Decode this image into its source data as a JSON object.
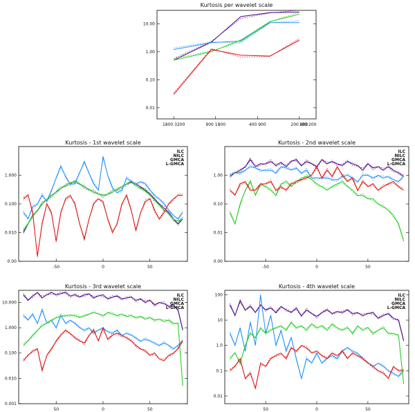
{
  "colors": {
    "ILC": "#4b0082",
    "NILC": "#1e90ff",
    "GMCA": "#22cc22",
    "L-GMCA": "#dd1111"
  },
  "chart_data": [
    {
      "type": "line",
      "title": "Kurtosis per wavelet scale",
      "yscale": "log",
      "ylim": [
        0.004,
        30
      ],
      "ytick_values": [
        0.01,
        0.1,
        1,
        10
      ],
      "ytick_labels": [
        "0.01",
        "0.10",
        "1.00",
        "10.00"
      ],
      "xlim": [
        0.6,
        4.4
      ],
      "xtick_values": [
        1,
        2,
        3,
        4
      ],
      "xtick_labels": [
        "1800 3200",
        "900 1800",
        "400 900",
        "200 400"
      ],
      "xtick_extra": "100 200",
      "x": [
        1,
        1.9,
        2.6,
        3.3,
        4.0
      ],
      "series": [
        {
          "name": "ILC",
          "values": [
            0.5,
            2.2,
            18,
            25,
            26
          ]
        },
        {
          "name": "NILC",
          "values": [
            1.2,
            2.1,
            2.4,
            11,
            11
          ]
        },
        {
          "name": "GMCA",
          "values": [
            0.5,
            1.0,
            2.6,
            12,
            22
          ]
        },
        {
          "name": "L-GMCA",
          "values": [
            0.03,
            1.2,
            0.75,
            0.7,
            2.6
          ]
        }
      ]
    },
    {
      "type": "line",
      "title": "Kurtosis - 1st wavelet scale",
      "yscale": "log",
      "ylim": [
        0.001,
        10
      ],
      "ytick_values": [
        0.001,
        0.01,
        0.1,
        1
      ],
      "ytick_labels": [
        "0.00",
        "0.010",
        "0.100",
        "1.000"
      ],
      "xlim": [
        -90,
        90
      ],
      "xtick_values": [
        -50,
        0,
        50
      ],
      "xtick_labels": [
        "-50",
        "0",
        "50"
      ],
      "legend": [
        "ILC",
        "NILC",
        "GMCA",
        "L-GMCA"
      ],
      "x": [
        -85,
        -80,
        -75,
        -70,
        -65,
        -60,
        -55,
        -50,
        -45,
        -40,
        -35,
        -30,
        -25,
        -20,
        -15,
        -10,
        -5,
        0,
        5,
        10,
        15,
        20,
        25,
        30,
        35,
        40,
        45,
        50,
        55,
        60,
        65,
        70,
        75,
        80,
        85
      ],
      "series": [
        {
          "name": "ILC",
          "values": [
            0.01,
            0.02,
            0.04,
            0.06,
            0.1,
            0.14,
            0.2,
            0.26,
            0.34,
            0.44,
            0.55,
            0.6,
            0.48,
            0.4,
            0.32,
            0.26,
            0.22,
            0.2,
            0.22,
            0.26,
            0.32,
            0.4,
            0.48,
            0.58,
            0.5,
            0.4,
            0.3,
            0.22,
            0.15,
            0.1,
            0.07,
            0.05,
            0.03,
            0.02,
            0.03
          ]
        },
        {
          "name": "NILC",
          "values": [
            0.05,
            0.03,
            0.08,
            0.1,
            0.2,
            0.12,
            0.3,
            0.8,
            2,
            0.9,
            0.5,
            0.5,
            1.2,
            3,
            1.2,
            0.5,
            0.3,
            4.5,
            1,
            0.35,
            0.25,
            0.3,
            0.8,
            0.6,
            0.5,
            0.6,
            0.5,
            0.3,
            0.2,
            0.15,
            0.1,
            0.06,
            0.04,
            0.03,
            0.05
          ]
        },
        {
          "name": "GMCA",
          "values": [
            0.012,
            0.02,
            0.04,
            0.06,
            0.1,
            0.14,
            0.2,
            0.26,
            0.34,
            0.44,
            0.55,
            0.6,
            0.48,
            0.4,
            0.32,
            0.26,
            0.22,
            0.2,
            0.22,
            0.26,
            0.32,
            0.4,
            0.48,
            0.55,
            0.45,
            0.35,
            0.28,
            0.2,
            0.14,
            0.09,
            0.06,
            0.045,
            0.03,
            0.025,
            0.03
          ]
        },
        {
          "name": "L-GMCA",
          "values": [
            0.15,
            0.2,
            0.05,
            0.0015,
            0.02,
            0.1,
            0.05,
            0.005,
            0.05,
            0.15,
            0.2,
            0.1,
            0.02,
            0.006,
            0.03,
            0.1,
            0.15,
            0.12,
            0.03,
            0.01,
            0.02,
            0.1,
            0.2,
            0.06,
            0.012,
            0.05,
            0.12,
            0.15,
            0.06,
            0.03,
            0.05,
            0.1,
            0.15,
            0.2,
            0.2
          ]
        }
      ]
    },
    {
      "type": "line",
      "title": "Kurtosis - 2nd wavelet scale",
      "yscale": "log",
      "ylim": [
        0.001,
        10
      ],
      "ytick_values": [
        0.001,
        0.01,
        0.1,
        1
      ],
      "ytick_labels": [
        "0.00",
        "0.01",
        "0.10",
        "1.00"
      ],
      "xlim": [
        -90,
        90
      ],
      "xtick_values": [
        -50,
        0,
        50
      ],
      "xtick_labels": [
        "-50",
        "0",
        "50"
      ],
      "legend": [
        "ILC",
        "NILC",
        "GMCA",
        "L-GMCA"
      ],
      "x": [
        -85,
        -80,
        -75,
        -70,
        -65,
        -60,
        -55,
        -50,
        -45,
        -40,
        -35,
        -30,
        -25,
        -20,
        -15,
        -10,
        -5,
        0,
        5,
        10,
        15,
        20,
        25,
        30,
        35,
        40,
        45,
        50,
        55,
        60,
        65,
        70,
        75,
        80,
        85
      ],
      "series": [
        {
          "name": "ILC",
          "values": [
            0.9,
            1.2,
            1.5,
            2,
            3.5,
            2,
            2.5,
            2.5,
            3,
            2.2,
            2.8,
            2,
            3,
            3.5,
            2.2,
            3,
            2.5,
            2,
            3.5,
            2.5,
            3,
            2.5,
            2.2,
            3,
            2.5,
            2.2,
            1.5,
            2.5,
            1.8,
            2,
            1.5,
            2,
            1.5,
            1.2,
            0.9
          ]
        },
        {
          "name": "NILC",
          "values": [
            1,
            1.2,
            1.2,
            1.5,
            2,
            1.8,
            1.5,
            1.5,
            1.5,
            1.2,
            2,
            1.8,
            1.5,
            1.8,
            1.2,
            1.5,
            0.8,
            0.8,
            0.8,
            0.8,
            0.7,
            0.7,
            0.9,
            1,
            0.8,
            0.6,
            1,
            1,
            0.8,
            1,
            0.8,
            0.9,
            0.7,
            0.6,
            0.9
          ]
        },
        {
          "name": "GMCA",
          "values": [
            0.05,
            0.02,
            0.1,
            0.3,
            0.6,
            0.2,
            0.5,
            0.4,
            0.3,
            0.2,
            0.5,
            0.6,
            0.4,
            0.6,
            0.8,
            0.9,
            0.7,
            0.5,
            0.4,
            0.3,
            0.4,
            0.5,
            0.6,
            0.4,
            0.3,
            0.2,
            0.2,
            0.15,
            0.15,
            0.1,
            0.08,
            0.06,
            0.04,
            0.02,
            0.005
          ]
        },
        {
          "name": "L-GMCA",
          "values": [
            0.3,
            0.2,
            0.5,
            0.6,
            0.3,
            0.3,
            0.5,
            0.5,
            0.6,
            0.3,
            0.4,
            0.3,
            0.5,
            0.6,
            0.7,
            0.8,
            1,
            2,
            0.8,
            1.5,
            0.9,
            2,
            1,
            0.6,
            0.8,
            0.3,
            0.6,
            0.4,
            0.5,
            0.3,
            0.4,
            0.5,
            0.6,
            0.4,
            0.3
          ]
        }
      ]
    },
    {
      "type": "line",
      "title": "Kurtosis - 3rd wavelet scale",
      "yscale": "log",
      "ylim": [
        0.001,
        30
      ],
      "ytick_values": [
        0.001,
        0.01,
        0.1,
        1,
        10
      ],
      "ytick_labels": [
        "0.001",
        "0.010",
        "0.100",
        "1.000",
        "10.000"
      ],
      "xlim": [
        -90,
        90
      ],
      "xtick_values": [
        -50,
        0,
        50
      ],
      "xtick_labels": [
        "50",
        "0",
        "50"
      ],
      "legend": [
        "ILC",
        "NILC",
        "GMCA",
        "L-GMCA"
      ],
      "x": [
        -85,
        -80,
        -75,
        -70,
        -65,
        -60,
        -55,
        -50,
        -45,
        -40,
        -35,
        -30,
        -25,
        -20,
        -15,
        -10,
        -5,
        0,
        5,
        10,
        15,
        20,
        25,
        30,
        35,
        40,
        45,
        50,
        55,
        60,
        65,
        70,
        75,
        80,
        85
      ],
      "series": [
        {
          "name": "ILC",
          "values": [
            20,
            12,
            18,
            25,
            15,
            20,
            25,
            20,
            22,
            25,
            18,
            20,
            16,
            20,
            22,
            15,
            18,
            20,
            14,
            16,
            18,
            14,
            15,
            16,
            12,
            14,
            10,
            12,
            8,
            10,
            9,
            7,
            8,
            5,
            0.8
          ]
        },
        {
          "name": "NILC",
          "values": [
            3,
            2,
            3.5,
            1.5,
            5,
            1.5,
            2,
            1,
            3,
            1.5,
            2,
            1.5,
            1,
            0.8,
            1,
            0.6,
            0.8,
            1,
            0.7,
            0.6,
            0.8,
            0.5,
            0.6,
            0.5,
            0.4,
            0.3,
            0.35,
            0.3,
            0.25,
            0.2,
            0.25,
            0.2,
            0.15,
            0.2,
            0.3
          ]
        },
        {
          "name": "GMCA",
          "values": [
            0.2,
            0.3,
            0.5,
            0.8,
            1.2,
            1.5,
            2,
            2.5,
            2.8,
            3,
            3.2,
            3,
            2.5,
            3,
            3.5,
            4,
            3.5,
            3,
            4,
            3.5,
            3,
            3.5,
            2.8,
            3,
            2.5,
            2.8,
            2.2,
            2.5,
            2,
            2.2,
            1.8,
            2,
            1.5,
            1.5,
            0.005
          ]
        },
        {
          "name": "L-GMCA",
          "values": [
            0.05,
            0.08,
            0.12,
            0.15,
            0.02,
            0.08,
            0.15,
            0.3,
            0.5,
            0.8,
            0.6,
            0.4,
            0.3,
            0.25,
            0.5,
            0.8,
            0.3,
            1,
            0.35,
            0.5,
            0.6,
            0.5,
            0.4,
            0.3,
            0.2,
            0.15,
            0.12,
            0.08,
            0.1,
            0.06,
            0.05,
            0.08,
            0.1,
            0.15,
            0.3
          ]
        }
      ]
    },
    {
      "type": "line",
      "title": "Kurtosis - 4th wavelet scale",
      "yscale": "log",
      "ylim": [
        0.005,
        150
      ],
      "ytick_values": [
        0.01,
        0.1,
        1,
        10,
        100
      ],
      "ytick_labels": [
        "0.01",
        "0.1",
        "1.0",
        "10",
        "100"
      ],
      "xlim": [
        -90,
        90
      ],
      "xtick_values": [
        -50,
        0,
        50
      ],
      "xtick_labels": [
        "50",
        "0",
        "50"
      ],
      "legend": [
        "ILC",
        "NILC",
        "GMCA",
        "L-GMCA"
      ],
      "x": [
        -85,
        -80,
        -75,
        -70,
        -65,
        -60,
        -55,
        -50,
        -45,
        -40,
        -35,
        -30,
        -25,
        -20,
        -15,
        -10,
        -5,
        0,
        5,
        10,
        15,
        20,
        25,
        30,
        35,
        40,
        45,
        50,
        55,
        60,
        65,
        70,
        75,
        80,
        85
      ],
      "series": [
        {
          "name": "ILC",
          "values": [
            40,
            15,
            60,
            25,
            35,
            20,
            40,
            25,
            30,
            20,
            35,
            25,
            20,
            30,
            15,
            25,
            18,
            14,
            20,
            25,
            18,
            22,
            20,
            25,
            18,
            20,
            15,
            18,
            20,
            12,
            15,
            18,
            12,
            10,
            1.5
          ]
        },
        {
          "name": "NILC",
          "values": [
            3,
            1,
            5,
            0.6,
            8,
            1,
            100,
            3,
            15,
            1,
            4,
            0.6,
            2,
            0.3,
            0.05,
            0.3,
            0.2,
            0.5,
            0.2,
            0.3,
            0.4,
            0.3,
            0.6,
            0.8,
            0.6,
            0.5,
            0.3,
            0.2,
            0.15,
            0.2,
            0.15,
            0.1,
            0.08,
            0.06,
            0.1
          ]
        },
        {
          "name": "GMCA",
          "values": [
            0.3,
            0.5,
            0.2,
            1,
            3,
            2,
            5,
            3,
            4,
            5,
            6,
            4,
            8,
            5,
            6,
            4,
            7,
            5,
            6,
            4,
            7,
            5,
            4,
            5,
            3,
            6,
            4,
            5,
            3,
            4,
            5,
            3,
            3,
            2.5,
            0.03
          ]
        },
        {
          "name": "L-GMCA",
          "values": [
            0.1,
            0.15,
            0.3,
            0.05,
            0.08,
            0.02,
            0.2,
            0.15,
            0.3,
            0.4,
            0.5,
            0.3,
            0.8,
            0.6,
            1,
            0.8,
            0.5,
            0.6,
            0.4,
            0.3,
            0.5,
            0.4,
            0.6,
            0.3,
            0.5,
            0.4,
            0.3,
            0.2,
            0.15,
            0.1,
            0.08,
            0.05,
            0.15,
            0.1,
            0.1
          ]
        }
      ]
    }
  ]
}
